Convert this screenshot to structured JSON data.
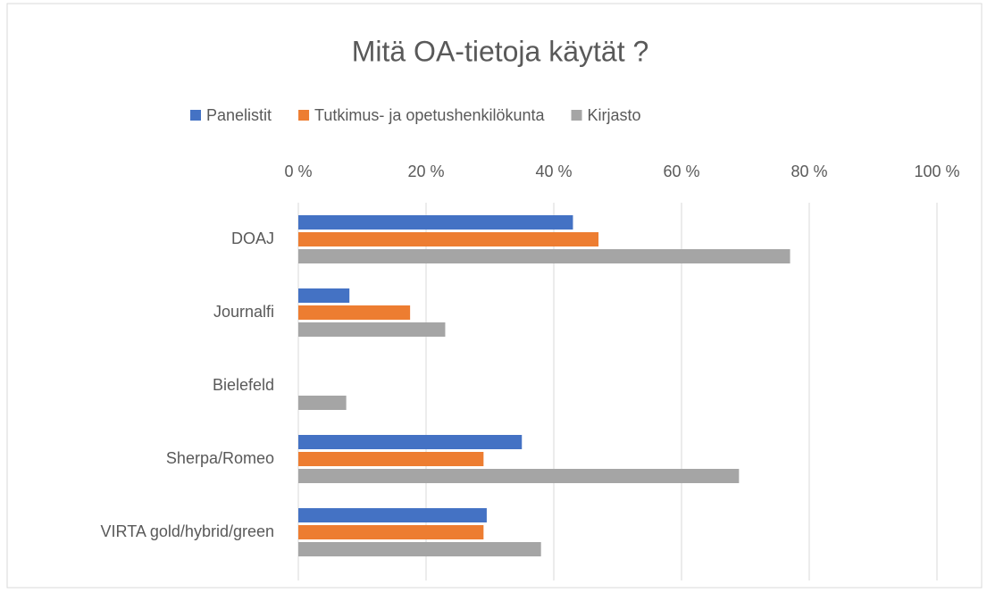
{
  "chart_data": {
    "type": "bar",
    "orientation": "horizontal",
    "title": "Mitä OA-tietoja käytät ?",
    "categories": [
      "DOAJ",
      "Journalfi",
      "Bielefeld",
      "Sherpa/Romeo",
      "VIRTA gold/hybrid/green"
    ],
    "series": [
      {
        "name": "Panelistit",
        "color": "#4472c4",
        "values": [
          43,
          8,
          0,
          35,
          29.5
        ]
      },
      {
        "name": "Tutkimus- ja opetushenkilökunta",
        "color": "#ed7d31",
        "values": [
          47,
          17.5,
          0,
          29,
          29
        ]
      },
      {
        "name": "Kirjasto",
        "color": "#a5a5a5",
        "values": [
          77,
          23,
          7.5,
          69,
          38
        ]
      }
    ],
    "xlim": [
      0,
      100
    ],
    "xticks": [
      {
        "value": 0,
        "label": "0 %"
      },
      {
        "value": 20,
        "label": "20 %"
      },
      {
        "value": 40,
        "label": "40 %"
      },
      {
        "value": 60,
        "label": "60 %"
      },
      {
        "value": 80,
        "label": "80 %"
      },
      {
        "value": 100,
        "label": "100 %"
      }
    ],
    "grid": true,
    "legend": "top"
  }
}
